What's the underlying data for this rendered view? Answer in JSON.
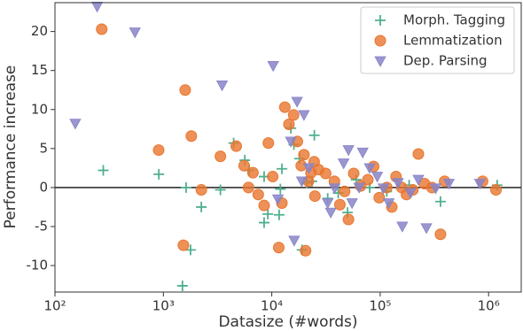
{
  "chart_data": {
    "type": "scatter",
    "x_label": "Datasize (#words)",
    "y_label": "Performance increase",
    "xscale": "log",
    "xlim": [
      100,
      2000000
    ],
    "ylim": [
      -13.4,
      23.7
    ],
    "xticks": [
      {
        "value": 100,
        "label": "10²"
      },
      {
        "value": 1000,
        "label": "10³"
      },
      {
        "value": 10000,
        "label": "10⁴"
      },
      {
        "value": 100000,
        "label": "10⁵"
      },
      {
        "value": 1000000,
        "label": "10⁶"
      }
    ],
    "yticks": [
      -10,
      -5,
      0,
      5,
      10,
      15,
      20
    ],
    "reference_line": 0,
    "legend": "upper right",
    "grid": false,
    "series": [
      {
        "name": "Morph. Tagging",
        "color": "#4fb08f",
        "marker": "plus",
        "x": [
          279,
          908,
          1620,
          2240,
          1500,
          1780,
          3360,
          4450,
          5640,
          6200,
          8500,
          8500,
          9200,
          11700,
          12000,
          12400,
          15000,
          16000,
          18000,
          19000,
          21000,
          23500,
          24700,
          32800,
          41000,
          50000,
          60000,
          80000,
          115000,
          185000,
          360000,
          1200000
        ],
        "values": [
          2.2,
          1.7,
          0,
          -2.5,
          -12.6,
          -8,
          -0.3,
          5.7,
          3.5,
          2.2,
          1.4,
          -4.5,
          -3.4,
          -3.5,
          -0.2,
          2.4,
          7.6,
          5.5,
          3.7,
          -8,
          0.6,
          0.8,
          6.7,
          -1.4,
          -0.7,
          -3.2,
          1,
          0,
          -0.5,
          0.3,
          -1.8,
          0.3
        ]
      },
      {
        "name": "Lemmatization",
        "color": "#e8762e",
        "marker": "circle",
        "x": [
          270,
          905,
          1530,
          1590,
          1810,
          2240,
          3360,
          4700,
          5560,
          6100,
          6700,
          7500,
          8500,
          9300,
          10200,
          11600,
          12400,
          13200,
          14400,
          15900,
          17200,
          18700,
          19800,
          20500,
          21800,
          23000,
          24600,
          25000,
          27000,
          31400,
          37800,
          42500,
          47000,
          51000,
          57000,
          66000,
          77000,
          87000,
          98000,
          115000,
          128000,
          140000,
          158000,
          175000,
          200000,
          225000,
          256000,
          300000,
          360000,
          393000,
          880000,
          1170000
        ],
        "values": [
          20.3,
          4.8,
          -7.4,
          12.5,
          6.6,
          -0.3,
          4,
          5.3,
          2.8,
          0,
          1.9,
          -0.9,
          -2.3,
          5.7,
          1.4,
          -7.7,
          -2,
          10.3,
          8.1,
          9.3,
          5.9,
          2.8,
          4.2,
          -8.1,
          0.8,
          1.9,
          3.3,
          -1.1,
          2.3,
          1.8,
          0.8,
          -2.2,
          -0.5,
          -4.1,
          1.8,
          0.2,
          1,
          2.7,
          -1.3,
          0,
          -2.5,
          1.4,
          0,
          -0.9,
          -0.3,
          4.3,
          0.5,
          0,
          -6,
          0.8,
          0.8,
          -0.3
        ]
      },
      {
        "name": "Dep. Parsing",
        "color": "#8784c8",
        "marker": "triangle_down",
        "x": [
          154,
          245,
          547,
          3480,
          10300,
          11400,
          15000,
          16100,
          17100,
          18900,
          19800,
          22000,
          32800,
          35000,
          38000,
          46000,
          51000,
          55000,
          64000,
          69000,
          80000,
          94000,
          107000,
          120000,
          146000,
          160000,
          190000,
          225000,
          267000,
          325000,
          430000,
          830000
        ],
        "values": [
          8.2,
          23.2,
          19.9,
          13.1,
          15.6,
          -1.5,
          5.9,
          -6.8,
          11,
          0.8,
          9.3,
          2.5,
          -2,
          -3.2,
          -0.1,
          3.1,
          4.8,
          -2,
          0,
          4.5,
          2.5,
          1.4,
          -0.1,
          -2,
          0.6,
          -5,
          -0.7,
          1,
          -5.2,
          -0.1,
          0.5,
          0.5
        ]
      }
    ]
  }
}
